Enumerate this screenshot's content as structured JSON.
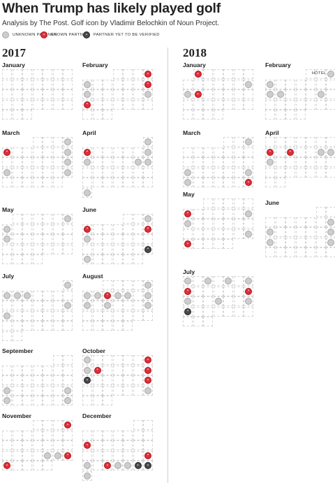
{
  "header": {
    "title": "When Trump has likely played golf",
    "subtitle": "Analysis by The Post. Golf icon by Vladimir Belochkin of Noun Project."
  },
  "legend": [
    {
      "kind": "unknown",
      "label": "UNKNOWN PARTNER"
    },
    {
      "kind": "known",
      "label": "KNOWN PARTNER"
    },
    {
      "kind": "pending",
      "label": "PARTNER YET TO BE VERIFIED"
    }
  ],
  "colors": {
    "unknown": "#cdcdcd",
    "known": "#df2f3a",
    "pending": "#4a4a4a"
  },
  "icons": {
    "golf_ball": "golf-ball-icon"
  },
  "chart_data": {
    "type": "calendar",
    "years": [
      {
        "year": "2017",
        "months": [
          {
            "name": "January",
            "first_weekday": 0,
            "days": 31,
            "outings": []
          },
          {
            "name": "February",
            "first_weekday": 3,
            "days": 28,
            "outings": [
              {
                "day": 4,
                "partner": "known"
              },
              {
                "day": 5,
                "partner": "unknown"
              },
              {
                "day": 11,
                "partner": "known"
              },
              {
                "day": 12,
                "partner": "unknown"
              },
              {
                "day": 18,
                "partner": "unknown"
              },
              {
                "day": 19,
                "partner": "known"
              }
            ]
          },
          {
            "name": "March",
            "first_weekday": 3,
            "days": 31,
            "outings": [
              {
                "day": 4,
                "partner": "unknown"
              },
              {
                "day": 5,
                "partner": "known"
              },
              {
                "day": 11,
                "partner": "unknown"
              },
              {
                "day": 18,
                "partner": "unknown"
              },
              {
                "day": 19,
                "partner": "unknown"
              },
              {
                "day": 25,
                "partner": "unknown"
              }
            ]
          },
          {
            "name": "April",
            "first_weekday": 6,
            "days": 30,
            "outings": [
              {
                "day": 1,
                "partner": "unknown"
              },
              {
                "day": 2,
                "partner": "known"
              },
              {
                "day": 8,
                "partner": "unknown"
              },
              {
                "day": 9,
                "partner": "unknown"
              },
              {
                "day": 14,
                "partner": "unknown"
              },
              {
                "day": 15,
                "partner": "unknown"
              },
              {
                "day": 30,
                "partner": "unknown"
              }
            ]
          },
          {
            "name": "May",
            "first_weekday": 1,
            "days": 31,
            "outings": [
              {
                "day": 6,
                "partner": "unknown"
              },
              {
                "day": 7,
                "partner": "unknown"
              },
              {
                "day": 14,
                "partner": "unknown"
              }
            ]
          },
          {
            "name": "June",
            "first_weekday": 4,
            "days": 30,
            "outings": [
              {
                "day": 3,
                "partner": "unknown"
              },
              {
                "day": 4,
                "partner": "known"
              },
              {
                "day": 10,
                "partner": "known"
              },
              {
                "day": 11,
                "partner": "unknown"
              },
              {
                "day": 24,
                "partner": "pending"
              },
              {
                "day": 25,
                "partner": "unknown"
              }
            ]
          },
          {
            "name": "July",
            "first_weekday": 6,
            "days": 31,
            "outings": [
              {
                "day": 1,
                "partner": "unknown"
              },
              {
                "day": 2,
                "partner": "unknown"
              },
              {
                "day": 3,
                "partner": "unknown"
              },
              {
                "day": 4,
                "partner": "unknown"
              },
              {
                "day": 15,
                "partner": "unknown"
              },
              {
                "day": 16,
                "partner": "unknown"
              }
            ]
          },
          {
            "name": "August",
            "first_weekday": 2,
            "days": 31,
            "outings": [
              {
                "day": 5,
                "partner": "unknown"
              },
              {
                "day": 6,
                "partner": "unknown"
              },
              {
                "day": 7,
                "partner": "unknown"
              },
              {
                "day": 8,
                "partner": "known"
              },
              {
                "day": 9,
                "partner": "unknown"
              },
              {
                "day": 10,
                "partner": "unknown"
              },
              {
                "day": 12,
                "partner": "unknown"
              },
              {
                "day": 13,
                "partner": "unknown"
              },
              {
                "day": 15,
                "partner": "unknown"
              },
              {
                "day": 19,
                "partner": "unknown"
              }
            ]
          },
          {
            "name": "September",
            "first_weekday": 5,
            "days": 30,
            "outings": [
              {
                "day": 17,
                "partner": "unknown"
              },
              {
                "day": 23,
                "partner": "unknown"
              },
              {
                "day": 24,
                "partner": "unknown"
              },
              {
                "day": 30,
                "partner": "unknown"
              }
            ]
          },
          {
            "name": "October",
            "first_weekday": 0,
            "days": 31,
            "outings": [
              {
                "day": 1,
                "partner": "unknown"
              },
              {
                "day": 7,
                "partner": "known"
              },
              {
                "day": 8,
                "partner": "unknown"
              },
              {
                "day": 9,
                "partner": "known"
              },
              {
                "day": 14,
                "partner": "known"
              },
              {
                "day": 15,
                "partner": "pending"
              },
              {
                "day": 21,
                "partner": "known"
              },
              {
                "day": 28,
                "partner": "unknown"
              }
            ]
          },
          {
            "name": "November",
            "first_weekday": 3,
            "days": 30,
            "outings": [
              {
                "day": 4,
                "partner": "known"
              },
              {
                "day": 23,
                "partner": "unknown"
              },
              {
                "day": 24,
                "partner": "unknown"
              },
              {
                "day": 25,
                "partner": "known"
              },
              {
                "day": 26,
                "partner": "known"
              }
            ]
          },
          {
            "name": "December",
            "first_weekday": 5,
            "days": 31,
            "outings": [
              {
                "day": 10,
                "partner": "known"
              },
              {
                "day": 23,
                "partner": "known"
              },
              {
                "day": 24,
                "partner": "unknown"
              },
              {
                "day": 26,
                "partner": "known"
              },
              {
                "day": 27,
                "partner": "unknown"
              },
              {
                "day": 28,
                "partner": "unknown"
              },
              {
                "day": 29,
                "partner": "pending"
              },
              {
                "day": 30,
                "partner": "pending"
              },
              {
                "day": 31,
                "partner": "unknown"
              }
            ]
          }
        ]
      },
      {
        "year": "2018",
        "months": [
          {
            "name": "January",
            "first_weekday": 1,
            "days": 31,
            "outings": [
              {
                "day": 1,
                "partner": "known"
              },
              {
                "day": 13,
                "partner": "unknown"
              },
              {
                "day": 14,
                "partner": "unknown"
              },
              {
                "day": 15,
                "partner": "known"
              }
            ]
          },
          {
            "name": "February",
            "first_weekday": 4,
            "days": 28,
            "outings": [
              {
                "day": 3,
                "partner": "unknown"
              },
              {
                "day": 4,
                "partner": "unknown"
              },
              {
                "day": 11,
                "partner": "unknown"
              },
              {
                "day": 12,
                "partner": "unknown"
              },
              {
                "day": 16,
                "partner": "unknown"
              }
            ],
            "note": {
              "day": 1,
              "text": "HOTEL"
            }
          },
          {
            "name": "March",
            "first_weekday": 4,
            "days": 31,
            "outings": [
              {
                "day": 3,
                "partner": "unknown"
              },
              {
                "day": 18,
                "partner": "unknown"
              },
              {
                "day": 24,
                "partner": "unknown"
              },
              {
                "day": 25,
                "partner": "unknown"
              },
              {
                "day": 31,
                "partner": "known"
              }
            ]
          },
          {
            "name": "April",
            "first_weekday": 0,
            "days": 30,
            "outings": [
              {
                "day": 8,
                "partner": "known"
              },
              {
                "day": 10,
                "partner": "known"
              },
              {
                "day": 13,
                "partner": "unknown"
              },
              {
                "day": 14,
                "partner": "unknown"
              },
              {
                "day": 15,
                "partner": "unknown"
              }
            ]
          },
          {
            "name": "May",
            "first_weekday": 2,
            "days": 31,
            "outings": [
              {
                "day": 6,
                "partner": "known"
              },
              {
                "day": 12,
                "partner": "unknown"
              },
              {
                "day": 13,
                "partner": "unknown"
              },
              {
                "day": 26,
                "partner": "unknown"
              },
              {
                "day": 27,
                "partner": "known"
              }
            ]
          },
          {
            "name": "June",
            "first_weekday": 5,
            "days": 30,
            "outings": [
              {
                "day": 9,
                "partner": "unknown"
              },
              {
                "day": 10,
                "partner": "unknown"
              },
              {
                "day": 16,
                "partner": "unknown"
              },
              {
                "day": 17,
                "partner": "unknown"
              },
              {
                "day": 23,
                "partner": "unknown"
              }
            ]
          },
          {
            "name": "July",
            "first_weekday": 0,
            "days": 31,
            "outings": [
              {
                "day": 1,
                "partner": "unknown"
              },
              {
                "day": 3,
                "partner": "unknown"
              },
              {
                "day": 5,
                "partner": "unknown"
              },
              {
                "day": 7,
                "partner": "unknown"
              },
              {
                "day": 8,
                "partner": "known"
              },
              {
                "day": 14,
                "partner": "known"
              },
              {
                "day": 15,
                "partner": "unknown"
              },
              {
                "day": 18,
                "partner": "unknown"
              },
              {
                "day": 21,
                "partner": "unknown"
              },
              {
                "day": 22,
                "partner": "pending"
              }
            ]
          }
        ]
      }
    ]
  }
}
